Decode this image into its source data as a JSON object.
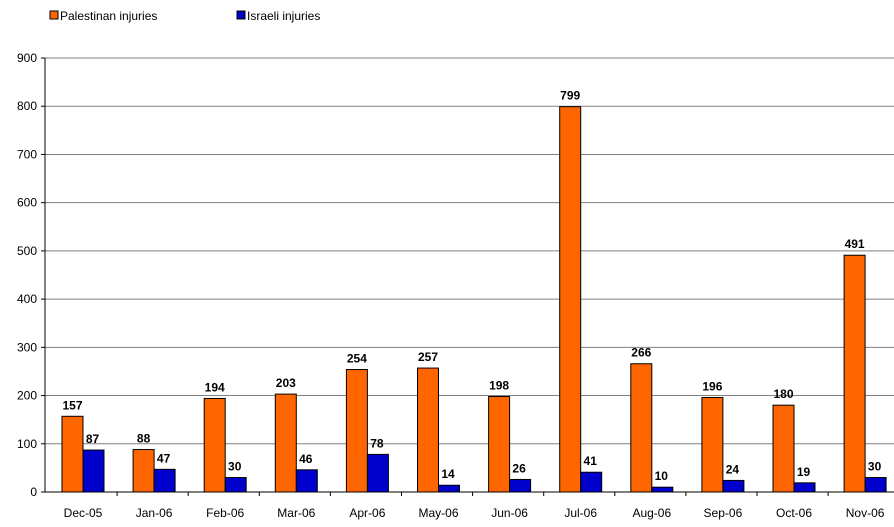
{
  "chart_data": {
    "type": "bar",
    "title": "",
    "xlabel": "",
    "ylabel": "",
    "categories": [
      "Dec-05",
      "Jan-06",
      "Feb-06",
      "Mar-06",
      "Apr-06",
      "May-06",
      "Jun-06",
      "Jul-06",
      "Aug-06",
      "Sep-06",
      "Oct-06",
      "Nov-06"
    ],
    "series": [
      {
        "name": "Palestinan injuries",
        "color": "#FF6600",
        "values": [
          157,
          88,
          194,
          203,
          254,
          257,
          198,
          799,
          266,
          196,
          180,
          491
        ]
      },
      {
        "name": "Israeli injuries",
        "color": "#0000CC",
        "values": [
          87,
          47,
          30,
          46,
          78,
          14,
          26,
          41,
          10,
          24,
          19,
          30
        ]
      }
    ],
    "ylim": [
      0,
      900
    ],
    "yticks": [
      0,
      100,
      200,
      300,
      400,
      500,
      600,
      700,
      800,
      900
    ],
    "grid": true,
    "legend_position": "top-left",
    "data_labels": true
  }
}
